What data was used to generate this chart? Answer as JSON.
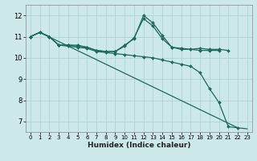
{
  "xlabel": "Humidex (Indice chaleur)",
  "bg_color": "#cce8e8",
  "line_color": "#1a6b5a",
  "grid_color": "#aacfcf",
  "xlim": [
    -0.5,
    23.5
  ],
  "ylim": [
    6.5,
    12.5
  ],
  "yticks": [
    7,
    8,
    9,
    10,
    11,
    12
  ],
  "xticks": [
    0,
    1,
    2,
    3,
    4,
    5,
    6,
    7,
    8,
    9,
    10,
    11,
    12,
    13,
    14,
    15,
    16,
    17,
    18,
    19,
    20,
    21,
    22,
    23
  ],
  "series": [
    {
      "x": [
        0,
        1,
        2,
        3,
        4,
        5,
        6,
        7,
        8,
        9,
        10,
        11,
        12,
        13,
        14,
        15,
        16,
        17,
        18,
        19,
        20,
        21
      ],
      "y": [
        11.0,
        11.2,
        11.0,
        10.6,
        10.6,
        10.6,
        10.5,
        10.35,
        10.3,
        10.3,
        10.6,
        10.9,
        12.0,
        11.65,
        11.05,
        10.5,
        10.45,
        10.4,
        10.45,
        10.4,
        10.4,
        10.35
      ],
      "marker": "D",
      "markersize": 2.0,
      "linewidth": 0.9
    },
    {
      "x": [
        0,
        1,
        2,
        3,
        4,
        5,
        6,
        7,
        8,
        9,
        10,
        11,
        12,
        13,
        14,
        15,
        16,
        17,
        18,
        19,
        20
      ],
      "y": [
        11.0,
        11.2,
        11.0,
        10.6,
        10.6,
        10.55,
        10.5,
        10.35,
        10.3,
        10.3,
        10.55,
        10.95,
        11.85,
        11.5,
        10.9,
        10.5,
        10.4,
        10.4,
        10.35,
        10.35,
        10.35
      ],
      "marker": "D",
      "markersize": 2.0,
      "linewidth": 0.9
    },
    {
      "x": [
        0,
        1,
        2,
        3,
        4,
        5,
        6,
        7,
        8,
        9,
        10,
        11,
        12,
        13,
        14,
        15,
        16,
        17,
        18,
        19,
        20,
        21,
        22
      ],
      "y": [
        11.0,
        11.2,
        11.0,
        10.6,
        10.55,
        10.5,
        10.45,
        10.3,
        10.25,
        10.2,
        10.15,
        10.1,
        10.05,
        10.0,
        9.9,
        9.8,
        9.7,
        9.6,
        9.3,
        8.55,
        7.9,
        6.75,
        6.7
      ],
      "marker": "D",
      "markersize": 2.0,
      "linewidth": 0.9
    },
    {
      "x": [
        0,
        1,
        22,
        23
      ],
      "y": [
        11.0,
        11.2,
        6.7,
        6.65
      ],
      "marker": null,
      "markersize": 0,
      "linewidth": 0.9
    }
  ]
}
